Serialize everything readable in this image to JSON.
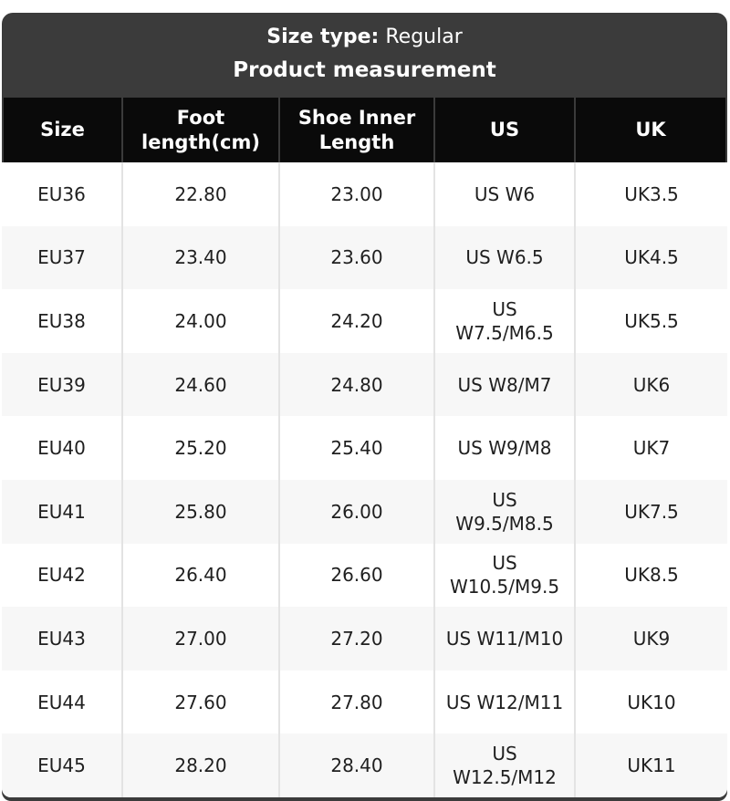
{
  "header": {
    "size_type_label": "Size type:",
    "size_type_value": "Regular",
    "title": "Product measurement"
  },
  "table": {
    "columns": [
      "Size",
      "Foot length(cm)",
      "Shoe Inner Length",
      "US",
      "UK"
    ],
    "rows": [
      [
        "EU36",
        "22.80",
        "23.00",
        "US W6",
        "UK3.5"
      ],
      [
        "EU37",
        "23.40",
        "23.60",
        "US W6.5",
        "UK4.5"
      ],
      [
        "EU38",
        "24.00",
        "24.20",
        "US W7.5/M6.5",
        "UK5.5"
      ],
      [
        "EU39",
        "24.60",
        "24.80",
        "US W8/M7",
        "UK6"
      ],
      [
        "EU40",
        "25.20",
        "25.40",
        "US W9/M8",
        "UK7"
      ],
      [
        "EU41",
        "25.80",
        "26.00",
        "US W9.5/M8.5",
        "UK7.5"
      ],
      [
        "EU42",
        "26.40",
        "26.60",
        "US W10.5/M9.5",
        "UK8.5"
      ],
      [
        "EU43",
        "27.00",
        "27.20",
        "US W11/M10",
        "UK9"
      ],
      [
        "EU44",
        "27.60",
        "27.80",
        "US W12/M11",
        "UK10"
      ],
      [
        "EU45",
        "28.20",
        "28.40",
        "US W12.5/M12",
        "UK11"
      ]
    ]
  },
  "colors": {
    "card_bg": "#3b3b3b",
    "table_header_bg": "#0a0a0a",
    "row_alt_bg": "#f7f7f7",
    "row_bg": "#ffffff",
    "divider": "#e3e3e3",
    "header_text": "#ffffff",
    "body_text": "#1f1f1f"
  }
}
